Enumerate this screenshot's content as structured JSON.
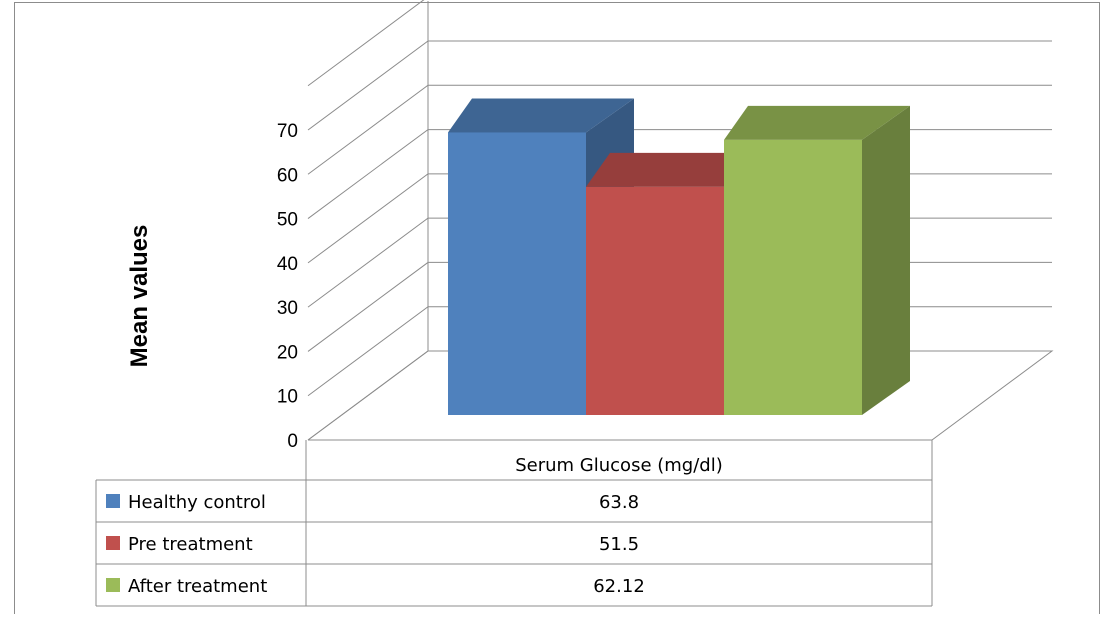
{
  "chart_data": {
    "type": "bar",
    "three_d": true,
    "ylabel": "Mean values",
    "xlabel": "",
    "ylim": [
      0,
      70
    ],
    "ytick_step": 10,
    "grid": true,
    "categories": [
      "Serum Glucose (mg/dl)"
    ],
    "series": [
      {
        "name": "Healthy control",
        "values": [
          63.8
        ],
        "value_labels": [
          "63.8"
        ],
        "color": "#4F81BD"
      },
      {
        "name": "Pre treatment",
        "values": [
          51.5
        ],
        "value_labels": [
          "51.5"
        ],
        "color": "#C0504D"
      },
      {
        "name": "After treatment",
        "values": [
          62.12
        ],
        "value_labels": [
          "62.12"
        ],
        "color": "#9BBB59"
      }
    ],
    "data_table": true,
    "legend": "data-table"
  }
}
